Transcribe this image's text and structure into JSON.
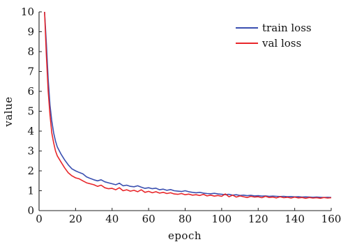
{
  "chart_data": {
    "type": "line",
    "xlabel": "epoch",
    "ylabel": "value",
    "xlim": [
      0,
      160
    ],
    "ylim": [
      0,
      10
    ],
    "xticks": [
      0,
      20,
      40,
      60,
      80,
      100,
      120,
      140,
      160
    ],
    "yticks": [
      0,
      1,
      2,
      3,
      4,
      5,
      6,
      7,
      8,
      9,
      10
    ],
    "grid": false,
    "legend_position": "top-right",
    "series": [
      {
        "name": "train loss",
        "color": "#3a4fb0",
        "x": [
          3,
          4,
          5,
          6,
          7,
          8,
          9,
          10,
          12,
          14,
          16,
          18,
          20,
          22,
          24,
          26,
          28,
          30,
          32,
          34,
          36,
          38,
          40,
          42,
          44,
          46,
          48,
          50,
          52,
          54,
          56,
          58,
          60,
          62,
          64,
          66,
          68,
          70,
          72,
          74,
          76,
          78,
          80,
          82,
          84,
          86,
          88,
          90,
          92,
          94,
          96,
          98,
          100,
          102,
          104,
          106,
          108,
          110,
          112,
          114,
          116,
          118,
          120,
          122,
          124,
          126,
          128,
          130,
          132,
          134,
          136,
          138,
          140,
          142,
          144,
          146,
          148,
          150,
          152,
          154,
          156,
          158,
          160
        ],
        "y": [
          10.0,
          8.4,
          6.6,
          5.3,
          4.5,
          3.9,
          3.5,
          3.2,
          2.85,
          2.55,
          2.3,
          2.1,
          2.0,
          1.92,
          1.85,
          1.7,
          1.62,
          1.55,
          1.5,
          1.55,
          1.45,
          1.4,
          1.35,
          1.3,
          1.38,
          1.25,
          1.28,
          1.22,
          1.2,
          1.25,
          1.18,
          1.12,
          1.15,
          1.1,
          1.13,
          1.05,
          1.08,
          1.02,
          1.06,
          1.0,
          0.98,
          0.96,
          1.0,
          0.95,
          0.92,
          0.9,
          0.92,
          0.88,
          0.86,
          0.85,
          0.87,
          0.84,
          0.82,
          0.8,
          0.82,
          0.78,
          0.8,
          0.76,
          0.78,
          0.75,
          0.77,
          0.74,
          0.75,
          0.73,
          0.74,
          0.72,
          0.73,
          0.72,
          0.71,
          0.72,
          0.7,
          0.71,
          0.69,
          0.7,
          0.68,
          0.69,
          0.68,
          0.67,
          0.68,
          0.67,
          0.66,
          0.67,
          0.66
        ]
      },
      {
        "name": "val loss",
        "color": "#e8262a",
        "x": [
          3,
          4,
          5,
          6,
          7,
          8,
          9,
          10,
          12,
          14,
          16,
          18,
          20,
          22,
          24,
          26,
          28,
          30,
          32,
          34,
          36,
          38,
          40,
          42,
          44,
          46,
          48,
          50,
          52,
          54,
          56,
          58,
          60,
          62,
          64,
          66,
          68,
          70,
          72,
          74,
          76,
          78,
          80,
          82,
          84,
          86,
          88,
          90,
          92,
          94,
          96,
          98,
          100,
          102,
          104,
          106,
          108,
          110,
          112,
          114,
          116,
          118,
          120,
          122,
          124,
          126,
          128,
          130,
          132,
          134,
          136,
          138,
          140,
          142,
          144,
          146,
          148,
          150,
          152,
          154,
          156,
          158,
          160
        ],
        "y": [
          10.0,
          7.8,
          6.0,
          4.8,
          3.9,
          3.4,
          3.0,
          2.75,
          2.45,
          2.15,
          1.9,
          1.75,
          1.65,
          1.6,
          1.5,
          1.4,
          1.35,
          1.3,
          1.22,
          1.28,
          1.15,
          1.1,
          1.12,
          1.05,
          1.15,
          1.0,
          1.05,
          0.98,
          1.02,
          0.95,
          1.05,
          0.92,
          0.97,
          0.9,
          0.95,
          0.88,
          0.92,
          0.86,
          0.9,
          0.84,
          0.82,
          0.86,
          0.8,
          0.83,
          0.78,
          0.8,
          0.76,
          0.82,
          0.74,
          0.78,
          0.73,
          0.76,
          0.72,
          0.84,
          0.7,
          0.78,
          0.68,
          0.74,
          0.7,
          0.66,
          0.72,
          0.68,
          0.7,
          0.65,
          0.72,
          0.66,
          0.68,
          0.64,
          0.7,
          0.65,
          0.67,
          0.63,
          0.68,
          0.64,
          0.66,
          0.62,
          0.66,
          0.63,
          0.65,
          0.62,
          0.66,
          0.63,
          0.65
        ]
      }
    ]
  }
}
